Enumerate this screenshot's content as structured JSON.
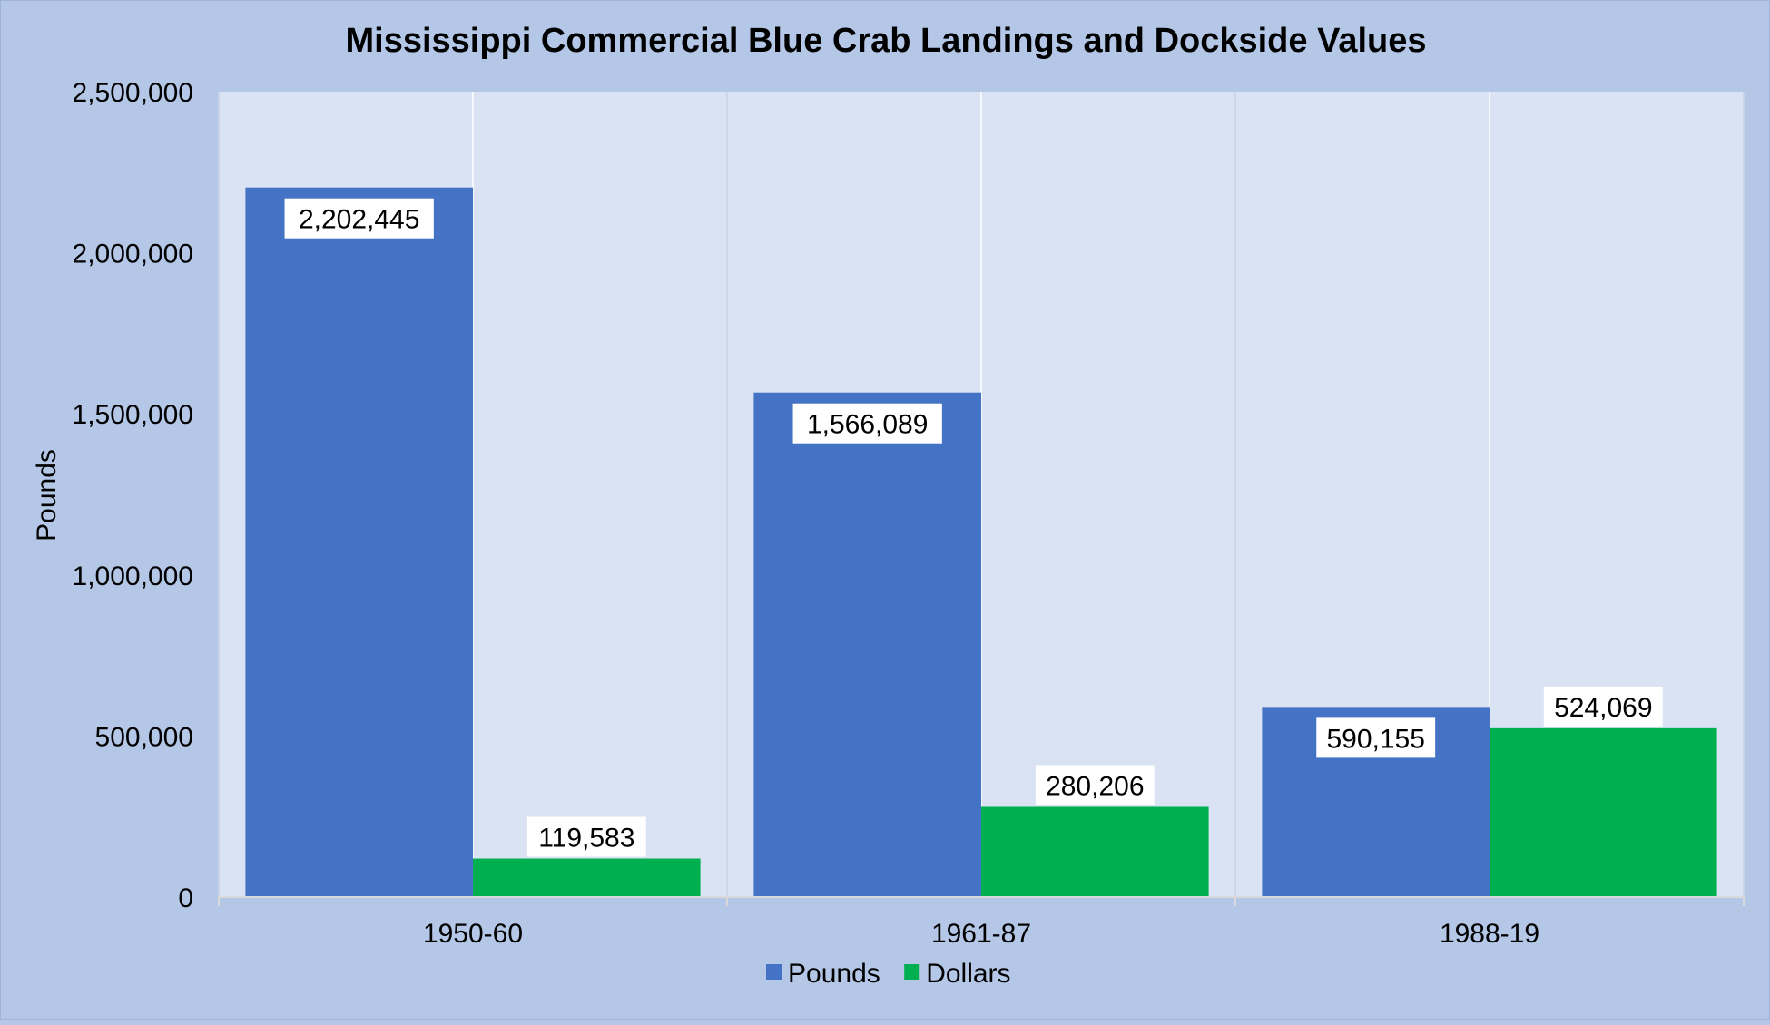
{
  "chart_data": {
    "type": "bar",
    "title": "Mississippi  Commercial Blue Crab Landings and Dockside Values",
    "xlabel": "",
    "ylabel": "Pounds",
    "categories": [
      "1950-60",
      "1961-87",
      "1988-19"
    ],
    "series": [
      {
        "name": "Pounds",
        "values": [
          2202445,
          1566089,
          590155
        ],
        "labels": [
          "2,202,445",
          "1,566,089",
          "590,155"
        ],
        "color": "#4472c4"
      },
      {
        "name": "Dollars",
        "values": [
          119583,
          280206,
          524069
        ],
        "labels": [
          "119,583",
          "280,206",
          "524,069"
        ],
        "color": "#00b050"
      }
    ],
    "ylim": [
      0,
      2500000
    ],
    "yticks": [
      0,
      500000,
      1000000,
      1500000,
      2000000,
      2500000
    ],
    "ytick_labels": [
      "0",
      "500,000",
      "1,000,000",
      "1,500,000",
      "2,000,000",
      "2,500,000"
    ],
    "grid": "vertical-category-lines",
    "legend": "bottom",
    "background": "#b4c7e7",
    "plot_background": "#dae3f3"
  }
}
